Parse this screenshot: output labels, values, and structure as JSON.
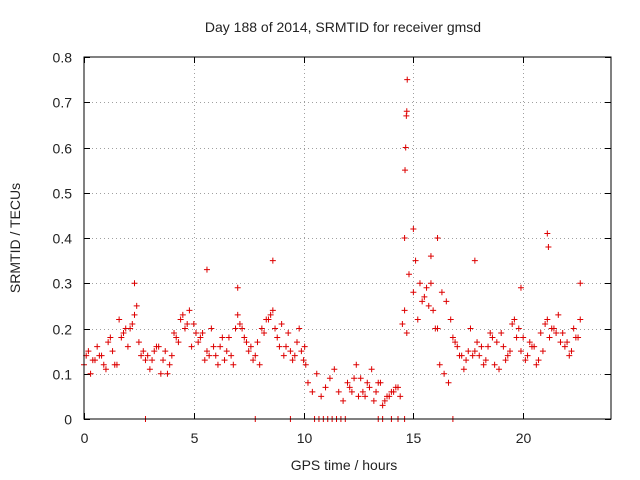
{
  "chart_data": {
    "type": "scatter",
    "title": "Day 188 of 2014, SRMTID for receiver gmsd",
    "xlabel": "GPS time / hours",
    "ylabel": "SRMTID / TECUs",
    "xlim": [
      0,
      24
    ],
    "ylim": [
      0,
      0.8
    ],
    "x_ticks": [
      0,
      5,
      10,
      15,
      20
    ],
    "x_tick_labels": [
      "0",
      "5",
      "10",
      "15",
      "20"
    ],
    "y_ticks": [
      0,
      0.1,
      0.2,
      0.3,
      0.4,
      0.5,
      0.6,
      0.7,
      0.8
    ],
    "y_tick_labels": [
      "0",
      "0.1",
      "0.2",
      "0.3",
      "0.4",
      "0.5",
      "0.6",
      "0.7",
      "0.8"
    ],
    "grid": true,
    "marker": "+",
    "color": "#dd0000",
    "series": [
      {
        "name": "SRMTID",
        "x": [
          0.0,
          0.2,
          0.4,
          0.6,
          0.8,
          1.0,
          1.2,
          1.4,
          1.6,
          1.8,
          2.0,
          2.2,
          2.4,
          2.6,
          2.8,
          3.0,
          3.2,
          3.4,
          3.6,
          3.8,
          4.0,
          4.2,
          4.4,
          4.6,
          4.8,
          5.0,
          5.2,
          5.4,
          5.6,
          5.8,
          6.0,
          6.2,
          6.4,
          6.6,
          6.8,
          7.0,
          7.2,
          7.4,
          7.6,
          7.8,
          8.0,
          8.2,
          8.4,
          8.6,
          8.8,
          9.0,
          9.2,
          9.4,
          9.6,
          9.8,
          10.0,
          10.2,
          10.4,
          10.6,
          10.8,
          11.0,
          11.2,
          11.4,
          11.6,
          11.8,
          12.0,
          12.2,
          12.4,
          12.6,
          12.8,
          13.0,
          13.2,
          13.4,
          13.6,
          13.8,
          14.0,
          14.2,
          14.4,
          14.6,
          14.8,
          15.0,
          15.2,
          15.4,
          15.6,
          15.8,
          16.0,
          16.2,
          16.4,
          16.6,
          16.8,
          17.0,
          17.2,
          17.4,
          17.6,
          17.8,
          18.0,
          18.2,
          18.4,
          18.6,
          18.8,
          19.0,
          19.2,
          19.4,
          19.6,
          19.8,
          20.0,
          20.2,
          20.4,
          20.6,
          20.8,
          21.0,
          21.2,
          21.4,
          21.6,
          21.8,
          22.0,
          22.2,
          22.4,
          22.6,
          0.1,
          0.5,
          0.9,
          1.3,
          1.7,
          2.1,
          2.5,
          2.9,
          3.3,
          3.7,
          4.1,
          4.5,
          4.9,
          5.3,
          5.7,
          6.1,
          6.5,
          6.9,
          7.3,
          7.7,
          8.1,
          8.5,
          8.9,
          9.3,
          9.7,
          10.1,
          12.1,
          12.5,
          12.9,
          13.3,
          13.7,
          14.1,
          14.5,
          15.1,
          15.5,
          15.9,
          16.3,
          16.7,
          17.1,
          17.5,
          17.9,
          18.3,
          18.7,
          19.1,
          19.5,
          19.9,
          20.3,
          20.7,
          21.1,
          21.5,
          21.9,
          22.3,
          0.3,
          0.7,
          1.1,
          1.5,
          1.9,
          2.3,
          2.7,
          3.1,
          3.5,
          3.9,
          4.3,
          4.7,
          5.1,
          5.5,
          5.9,
          6.3,
          6.7,
          7.1,
          7.5,
          7.9,
          8.3,
          8.7,
          9.1,
          9.5,
          9.9,
          10.05,
          12.3,
          12.7,
          13.1,
          13.5,
          13.9,
          14.3,
          14.7,
          15.3,
          15.7,
          16.1,
          16.5,
          16.9,
          17.3,
          17.7,
          18.1,
          18.5,
          18.9,
          19.3,
          19.7,
          20.1,
          20.5,
          20.9,
          21.3,
          21.7,
          22.1,
          22.5,
          2.3,
          5.6,
          7.0,
          8.6,
          14.6,
          14.62,
          14.65,
          14.68,
          14.7,
          14.72,
          15.0,
          15.8,
          16.1,
          21.1,
          21.15,
          22.6,
          17.8,
          19.9,
          2.8,
          7.8,
          9.4,
          10.5,
          10.7,
          10.9,
          11.1,
          11.3,
          11.5,
          11.7,
          11.9,
          13.4,
          13.6,
          14.0,
          14.3,
          14.6,
          16.8
        ],
        "y": [
          0.12,
          0.15,
          0.13,
          0.16,
          0.14,
          0.11,
          0.18,
          0.12,
          0.22,
          0.19,
          0.16,
          0.21,
          0.25,
          0.14,
          0.13,
          0.11,
          0.15,
          0.16,
          0.13,
          0.1,
          0.14,
          0.18,
          0.22,
          0.2,
          0.24,
          0.21,
          0.17,
          0.19,
          0.15,
          0.2,
          0.14,
          0.16,
          0.13,
          0.18,
          0.12,
          0.23,
          0.2,
          0.17,
          0.16,
          0.14,
          0.12,
          0.19,
          0.22,
          0.24,
          0.18,
          0.21,
          0.16,
          0.15,
          0.14,
          0.2,
          0.13,
          0.08,
          0.06,
          0.1,
          0.05,
          0.07,
          0.09,
          0.11,
          0.06,
          0.04,
          0.08,
          0.06,
          0.12,
          0.09,
          0.05,
          0.07,
          0.04,
          0.08,
          0.03,
          0.05,
          0.06,
          0.07,
          0.05,
          0.24,
          0.32,
          0.28,
          0.22,
          0.26,
          0.29,
          0.3,
          0.2,
          0.12,
          0.1,
          0.08,
          0.18,
          0.16,
          0.14,
          0.13,
          0.2,
          0.15,
          0.14,
          0.12,
          0.16,
          0.18,
          0.17,
          0.19,
          0.13,
          0.15,
          0.22,
          0.2,
          0.18,
          0.14,
          0.16,
          0.12,
          0.19,
          0.21,
          0.18,
          0.2,
          0.23,
          0.19,
          0.17,
          0.15,
          0.18,
          0.22,
          0.14,
          0.13,
          0.12,
          0.15,
          0.18,
          0.2,
          0.17,
          0.14,
          0.16,
          0.15,
          0.19,
          0.23,
          0.16,
          0.18,
          0.14,
          0.12,
          0.15,
          0.2,
          0.18,
          0.13,
          0.2,
          0.23,
          0.16,
          0.19,
          0.17,
          0.12,
          0.07,
          0.05,
          0.08,
          0.06,
          0.04,
          0.06,
          0.21,
          0.35,
          0.27,
          0.24,
          0.28,
          0.22,
          0.14,
          0.15,
          0.17,
          0.13,
          0.12,
          0.16,
          0.21,
          0.15,
          0.17,
          0.13,
          0.22,
          0.19,
          0.16,
          0.2,
          0.1,
          0.14,
          0.17,
          0.12,
          0.2,
          0.23,
          0.15,
          0.13,
          0.1,
          0.12,
          0.17,
          0.21,
          0.19,
          0.13,
          0.16,
          0.18,
          0.14,
          0.21,
          0.15,
          0.17,
          0.22,
          0.2,
          0.14,
          0.13,
          0.15,
          0.16,
          0.09,
          0.06,
          0.11,
          0.08,
          0.05,
          0.07,
          0.19,
          0.3,
          0.25,
          0.2,
          0.26,
          0.17,
          0.11,
          0.14,
          0.16,
          0.19,
          0.11,
          0.14,
          0.18,
          0.13,
          0.16,
          0.15,
          0.2,
          0.17,
          0.14,
          0.18,
          0.3,
          0.33,
          0.29,
          0.35,
          0.4,
          0.55,
          0.6,
          0.67,
          0.68,
          0.75,
          0.42,
          0.36,
          0.4,
          0.41,
          0.38,
          0.3,
          0.35,
          0.29,
          0.0,
          0.0,
          0.0,
          0.0,
          0.0,
          0.0,
          0.0,
          0.0,
          0.0,
          0.0,
          0.0,
          0.0,
          0.0,
          0.0,
          0.0,
          0.0,
          0.0
        ]
      }
    ]
  }
}
